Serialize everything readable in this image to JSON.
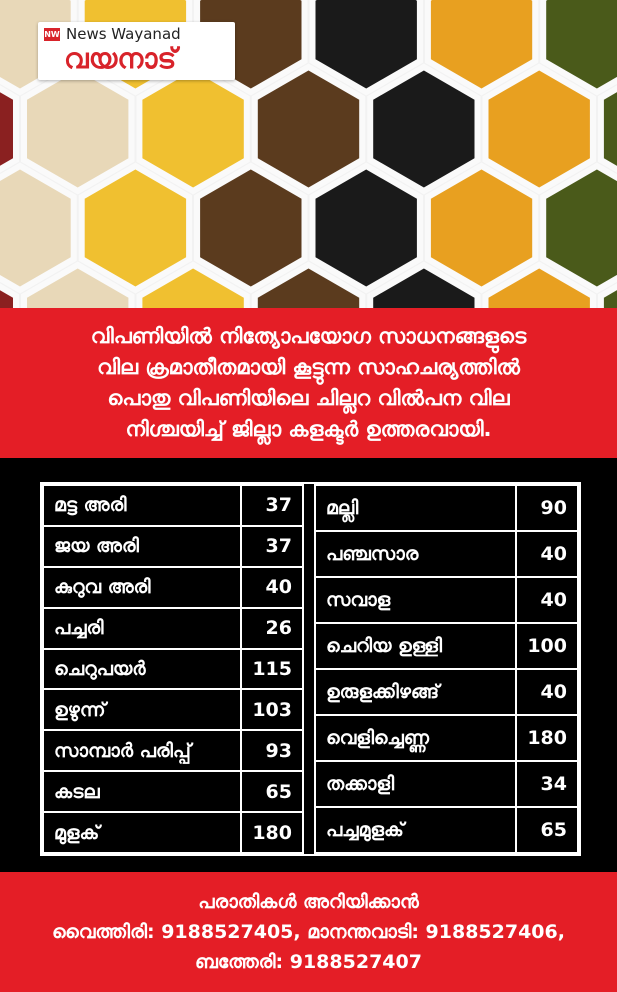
{
  "header": {
    "logo_en": "News Wayanad",
    "logo_ml": "വയനാട്"
  },
  "notice": {
    "lines": [
      "വിപണിയിൽ നിത്യോപയോഗ സാധനങ്ങളുടെ",
      "വില ക്രമാതീതമായി കൂട്ടുന്ന സാഹചര്യത്തിൽ",
      "പൊതു വിപണിയിലെ ചില്ലറ വിൽപന വില",
      "നിശ്ചയിച്ച് ജില്ലാ കളക്ടർ ഉത്തരവായി."
    ]
  },
  "table": {
    "left": [
      [
        "മട്ട അരി",
        37
      ],
      [
        "ജയ അരി",
        37
      ],
      [
        "കുറുവ അരി",
        40
      ],
      [
        "പച്ചരി",
        26
      ],
      [
        "ചെറുപയർ",
        115
      ],
      [
        "ഉഴുന്ന്",
        103
      ],
      [
        "സാമ്പാർ പരിപ്പ്",
        93
      ],
      [
        "കടല",
        65
      ],
      [
        "മുളക്",
        180
      ]
    ],
    "right": [
      [
        "മല്ലി",
        90
      ],
      [
        "പഞ്ചസാര",
        40
      ],
      [
        "സവാള",
        40
      ],
      [
        "ചെറിയ ഉള്ളി",
        100
      ],
      [
        "ഉരുളക്കിഴങ്ങ്",
        40
      ],
      [
        "വെളിച്ചെണ്ണ",
        180
      ],
      [
        "തക്കാളി",
        34
      ],
      [
        "പച്ചമുളക്",
        65
      ]
    ]
  },
  "footer": {
    "lines": [
      "പരാതികൾ അറിയിക്കാൻ",
      "വൈത്തിരി: 9188527405, മാനന്തവാടി: 9188527406,",
      "ബത്തേരി: 9188527407"
    ]
  }
}
